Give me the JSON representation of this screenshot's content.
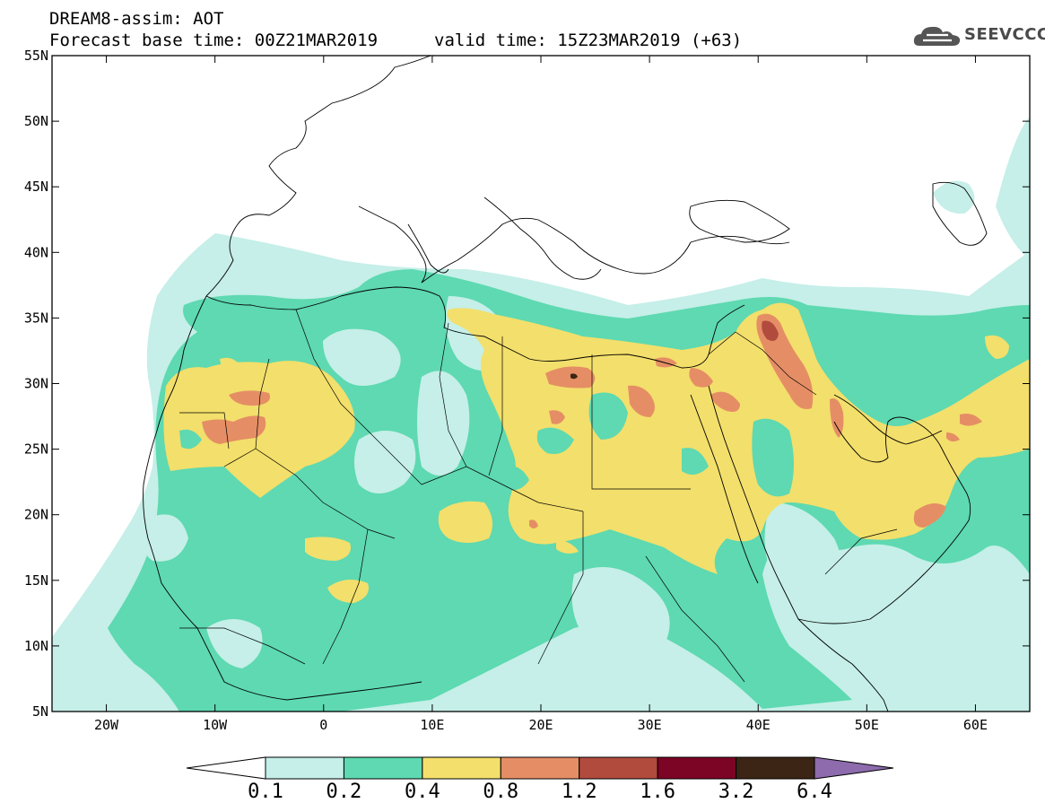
{
  "header": {
    "line1": "DREAM8-assim: AOT",
    "line2": "Forecast base time: 00Z21MAR2019",
    "valid": "valid time: 15Z23MAR2019 (+63)"
  },
  "logo": {
    "text": "SEEVCCC",
    "icon": "cloud-icon",
    "color": "#555555"
  },
  "map": {
    "lon_range": [
      -25,
      65
    ],
    "lat_range": [
      5,
      55
    ],
    "lat_ticks": [
      {
        "value": 55,
        "label": "55N"
      },
      {
        "value": 50,
        "label": "50N"
      },
      {
        "value": 45,
        "label": "45N"
      },
      {
        "value": 40,
        "label": "40N"
      },
      {
        "value": 35,
        "label": "35N"
      },
      {
        "value": 30,
        "label": "30N"
      },
      {
        "value": 25,
        "label": "25N"
      },
      {
        "value": 20,
        "label": "20N"
      },
      {
        "value": 15,
        "label": "15N"
      },
      {
        "value": 10,
        "label": "10N"
      },
      {
        "value": 5,
        "label": "5N"
      }
    ],
    "lon_ticks": [
      {
        "value": -20,
        "label": "20W"
      },
      {
        "value": -10,
        "label": "10W"
      },
      {
        "value": 0,
        "label": "0"
      },
      {
        "value": 10,
        "label": "10E"
      },
      {
        "value": 20,
        "label": "20E"
      },
      {
        "value": 30,
        "label": "30E"
      },
      {
        "value": 40,
        "label": "40E"
      },
      {
        "value": 50,
        "label": "50E"
      },
      {
        "value": 60,
        "label": "60E"
      }
    ]
  },
  "colorbar": {
    "levels": [
      "0.1",
      "0.2",
      "0.4",
      "0.8",
      "1.2",
      "1.6",
      "3.2",
      "6.4"
    ],
    "colors": [
      "#ffffff",
      "#c5efe8",
      "#5ed9b1",
      "#f3df6b",
      "#e58e65",
      "#b14b3e",
      "#7c0424",
      "#3c2515",
      "#8d6bad"
    ]
  },
  "fields": {
    "c1": "#c5efe8",
    "c2": "#5ed9b1",
    "c3": "#f3df6b",
    "c4": "#e58e65",
    "c5": "#b14b3e",
    "c7": "#3c2515"
  }
}
